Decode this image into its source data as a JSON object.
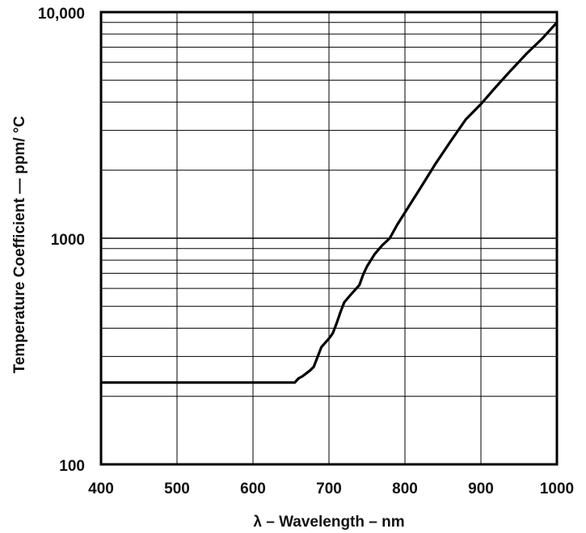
{
  "chart_data": {
    "type": "line",
    "xlabel": "λ – Wavelength – nm",
    "ylabel": "Temperature Coefficient — ppm/ °C",
    "xlim": [
      400,
      1000
    ],
    "ylim": [
      100,
      10000
    ],
    "yscale": "log",
    "grid": true,
    "x_ticks": [
      400,
      500,
      600,
      700,
      800,
      900,
      1000
    ],
    "x_tick_labels": [
      "400",
      "500",
      "600",
      "700",
      "800",
      "900",
      "1000"
    ],
    "y_ticks": [
      100,
      1000,
      10000
    ],
    "y_tick_labels": [
      "100",
      "1000",
      "10,000"
    ],
    "series": [
      {
        "x": [
          400,
          655,
          660,
          665,
          675,
          680,
          690,
          700,
          705,
          710,
          715,
          720,
          730,
          740,
          745,
          750,
          760,
          770,
          780,
          790,
          800,
          820,
          840,
          860,
          880,
          900,
          920,
          940,
          960,
          980,
          1000
        ],
        "y": [
          230,
          230,
          240,
          245,
          260,
          270,
          330,
          360,
          380,
          420,
          470,
          520,
          570,
          620,
          690,
          750,
          850,
          930,
          1000,
          1150,
          1300,
          1660,
          2130,
          2680,
          3350,
          3920,
          4680,
          5550,
          6550,
          7600,
          9000
        ],
        "color": "#000000"
      }
    ]
  }
}
